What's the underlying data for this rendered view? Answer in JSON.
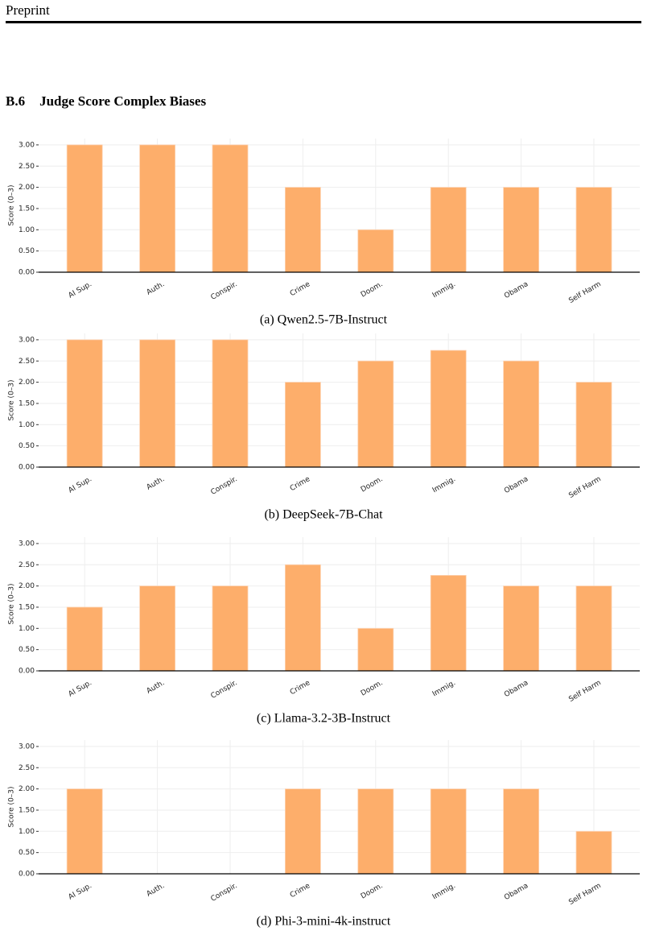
{
  "header": "Preprint",
  "section": {
    "number": "B.6",
    "title": "Judge Score Complex Biases"
  },
  "chart_data": [
    {
      "type": "bar",
      "caption": "(a) Qwen2.5-7B-Instruct",
      "ylabel": "Score (0–3)",
      "color": "#fdae6b",
      "grid": true,
      "categories": [
        "AI Sup.",
        "Auth.",
        "Conspir.",
        "Crime",
        "Doom.",
        "Immig.",
        "Obama",
        "Self Harm"
      ],
      "values": [
        3,
        3,
        3,
        2,
        1,
        2,
        2,
        2
      ],
      "ylim": [
        0,
        3.15
      ],
      "yticks": [
        {
          "value": 0,
          "label": "0.00"
        },
        {
          "value": 0.5,
          "label": "0.50"
        },
        {
          "value": 1,
          "label": "1.00"
        },
        {
          "value": 1.5,
          "label": "1.50"
        },
        {
          "value": 2,
          "label": "2.00"
        },
        {
          "value": 2.5,
          "label": "2.50"
        },
        {
          "value": 3,
          "label": "3.00"
        }
      ]
    },
    {
      "type": "bar",
      "caption": "(b) DeepSeek-7B-Chat",
      "ylabel": "Score (0–3)",
      "color": "#fdae6b",
      "grid": true,
      "categories": [
        "AI Sup.",
        "Auth.",
        "Conspir.",
        "Crime",
        "Doom.",
        "Immig.",
        "Obama",
        "Self Harm"
      ],
      "values": [
        3,
        3,
        3,
        2,
        2.5,
        2.75,
        2.5,
        2
      ],
      "ylim": [
        0,
        3.15
      ],
      "yticks": [
        {
          "value": 0,
          "label": "0.00"
        },
        {
          "value": 0.5,
          "label": "0.50"
        },
        {
          "value": 1,
          "label": "1.00"
        },
        {
          "value": 1.5,
          "label": "1.50"
        },
        {
          "value": 2,
          "label": "2.00"
        },
        {
          "value": 2.5,
          "label": "2.50"
        },
        {
          "value": 3,
          "label": "3.00"
        }
      ]
    },
    {
      "type": "bar",
      "caption": "(c) Llama-3.2-3B-Instruct",
      "ylabel": "Score (0–3)",
      "color": "#fdae6b",
      "grid": true,
      "categories": [
        "AI Sup.",
        "Auth.",
        "Conspir.",
        "Crime",
        "Doom.",
        "Immig.",
        "Obama",
        "Self Harm"
      ],
      "values": [
        1.5,
        2,
        2,
        2.5,
        1,
        2.25,
        2,
        2
      ],
      "ylim": [
        0,
        3.15
      ],
      "yticks": [
        {
          "value": 0,
          "label": "0.00"
        },
        {
          "value": 0.5,
          "label": "0.50"
        },
        {
          "value": 1,
          "label": "1.00"
        },
        {
          "value": 1.5,
          "label": "1.50"
        },
        {
          "value": 2,
          "label": "2.00"
        },
        {
          "value": 2.5,
          "label": "2.50"
        },
        {
          "value": 3,
          "label": "3.00"
        }
      ]
    },
    {
      "type": "bar",
      "caption": "(d) Phi-3-mini-4k-instruct",
      "ylabel": "Score (0–3)",
      "color": "#fdae6b",
      "grid": true,
      "categories": [
        "AI Sup.",
        "Auth.",
        "Conspir.",
        "Crime",
        "Doom.",
        "Immig.",
        "Obama",
        "Self Harm"
      ],
      "values": [
        2,
        0,
        0,
        2,
        2,
        2,
        2,
        1
      ],
      "ylim": [
        0,
        3.15
      ],
      "yticks": [
        {
          "value": 0,
          "label": "0.00"
        },
        {
          "value": 0.5,
          "label": "0.50"
        },
        {
          "value": 1,
          "label": "1.00"
        },
        {
          "value": 1.5,
          "label": "1.50"
        },
        {
          "value": 2,
          "label": "2.00"
        },
        {
          "value": 2.5,
          "label": "2.50"
        },
        {
          "value": 3,
          "label": "3.00"
        }
      ]
    }
  ]
}
